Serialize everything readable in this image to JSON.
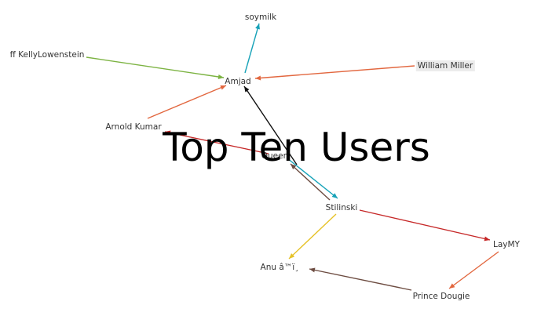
{
  "title": "Top Ten Users",
  "nodes": [
    {
      "id": "soymilk",
      "label": "soymilk"
    },
    {
      "id": "kelly",
      "label": "ff KellyLowenstein"
    },
    {
      "id": "william",
      "label": "William Miller"
    },
    {
      "id": "amjad",
      "label": "Amjad"
    },
    {
      "id": "arnold",
      "label": "Arnold Kumar"
    },
    {
      "id": "queen",
      "label": "Queen"
    },
    {
      "id": "stilinski",
      "label": "Stilinski"
    },
    {
      "id": "laymy",
      "label": "LayMY"
    },
    {
      "id": "anu",
      "label": "Anu â™ï¸"
    },
    {
      "id": "prince",
      "label": "Prince Dougie"
    }
  ],
  "edges": [
    {
      "from": "amjad",
      "to": "soymilk",
      "color": "#17a2b8"
    },
    {
      "from": "kelly",
      "to": "amjad",
      "color": "#7cb342"
    },
    {
      "from": "william",
      "to": "amjad",
      "color": "#e2673f"
    },
    {
      "from": "arnold",
      "to": "amjad",
      "color": "#e2673f"
    },
    {
      "from": "stilinski",
      "to": "amjad",
      "color": "#111111"
    },
    {
      "from": "queen",
      "to": "arnold",
      "color": "#c62828"
    },
    {
      "from": "queen",
      "to": "stilinski",
      "color": "#17a2b8"
    },
    {
      "from": "stilinski",
      "to": "queen",
      "color": "#6d4c41"
    },
    {
      "from": "stilinski",
      "to": "laymy",
      "color": "#c62828"
    },
    {
      "from": "stilinski",
      "to": "anu",
      "color": "#e6c229"
    },
    {
      "from": "laymy",
      "to": "prince",
      "color": "#e2673f"
    },
    {
      "from": "prince",
      "to": "anu",
      "color": "#6d4c41"
    }
  ]
}
